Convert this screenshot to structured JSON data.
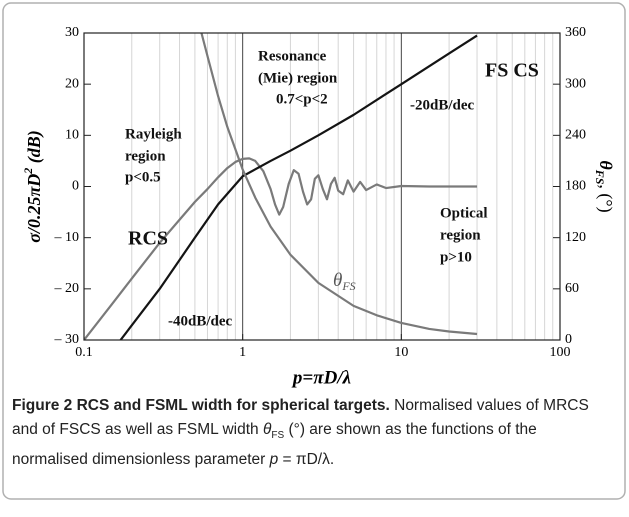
{
  "chart_data": {
    "type": "line",
    "xlog": true,
    "xlim": [
      0.1,
      100
    ],
    "xticks": [
      0.1,
      1,
      10,
      100
    ],
    "ylim": [
      -30,
      30
    ],
    "yticks": [
      {
        "value": 30,
        "label": "30"
      },
      {
        "value": 20,
        "label": "20"
      },
      {
        "value": 10,
        "label": "10"
      },
      {
        "value": 0,
        "label": "0"
      },
      {
        "value": -10,
        "label": "– 10"
      },
      {
        "value": -20,
        "label": "– 20"
      },
      {
        "value": -30,
        "label": "– 30"
      }
    ],
    "y2lim": [
      0,
      360
    ],
    "y2ticks": [
      0,
      60,
      120,
      180,
      240,
      300,
      360
    ],
    "minor_grid": true,
    "major_grid": true,
    "x_label": "p=πD/λ",
    "y_label": [
      "σ/0.25πD",
      "2",
      " (dB)"
    ],
    "y2_label": [
      "θ",
      "FS",
      ", (°)"
    ],
    "annotations": [
      "Resonance",
      "(Mie) region",
      "0.7<p<2",
      "FS CS",
      "-20dB/dec",
      "Rayleigh",
      "region",
      "p<0.5",
      "RCS",
      "Optical",
      "region",
      "p>10",
      "-40dB/dec"
    ],
    "theta_label": [
      "θ",
      "FS"
    ],
    "series": [
      {
        "color": "#7a7a7a",
        "x": [
          0.1,
          0.15,
          0.2,
          0.3,
          0.4,
          0.5,
          0.6,
          0.7,
          0.8,
          0.9,
          1.0,
          1.1,
          1.2,
          1.35,
          1.5,
          1.6,
          1.7,
          1.8,
          1.95,
          2.1,
          2.25,
          2.4,
          2.55,
          2.7,
          2.85,
          3.0,
          3.2,
          3.4,
          3.6,
          3.8,
          4.0,
          4.3,
          4.6,
          5.0,
          5.5,
          6,
          7,
          8,
          10,
          15,
          20,
          30
        ],
        "values": [
          -30,
          -23,
          -18,
          -11,
          -6.5,
          -3,
          -0.5,
          1.8,
          3.6,
          4.8,
          5.4,
          5.5,
          5,
          3,
          -0.5,
          -3.5,
          -5.5,
          -4,
          0.5,
          3.2,
          2.5,
          -1,
          -3.5,
          -2.5,
          1.5,
          2.2,
          -0.5,
          -2.5,
          0.5,
          1.7,
          -0.8,
          -1.5,
          1.2,
          -1,
          0.9,
          -0.7,
          0.4,
          -0.3,
          0.1,
          0,
          0,
          0
        ]
      },
      {
        "color": "#141414",
        "x": [
          0.17,
          0.3,
          0.5,
          0.7,
          1,
          1.5,
          2,
          3,
          5,
          10,
          20,
          30
        ],
        "values": [
          -30,
          -20,
          -10,
          -3.5,
          2,
          5,
          7,
          10,
          14,
          20,
          26,
          29.5
        ]
      },
      {
        "color": "#7a7a7a",
        "axis": "y2",
        "x": [
          0.55,
          0.6,
          0.7,
          0.8,
          1,
          1.2,
          1.5,
          2,
          3,
          5,
          7,
          10,
          15,
          20,
          30
        ],
        "values": [
          360,
          333,
          286,
          250,
          200,
          167,
          133,
          100,
          67,
          40,
          29,
          20,
          13,
          10,
          7
        ]
      }
    ],
    "caption": {
      "label": "Figure 2",
      "title": "RCS and FSML width for spherical targets.",
      "parts": [
        " Normalised values of MRCS and of FSCS as well as FSML width ",
        "θ",
        "FS",
        " (°) are shown as the functions of the normalised dimensionless parameter ",
        "p",
        " = πD/λ."
      ]
    }
  }
}
